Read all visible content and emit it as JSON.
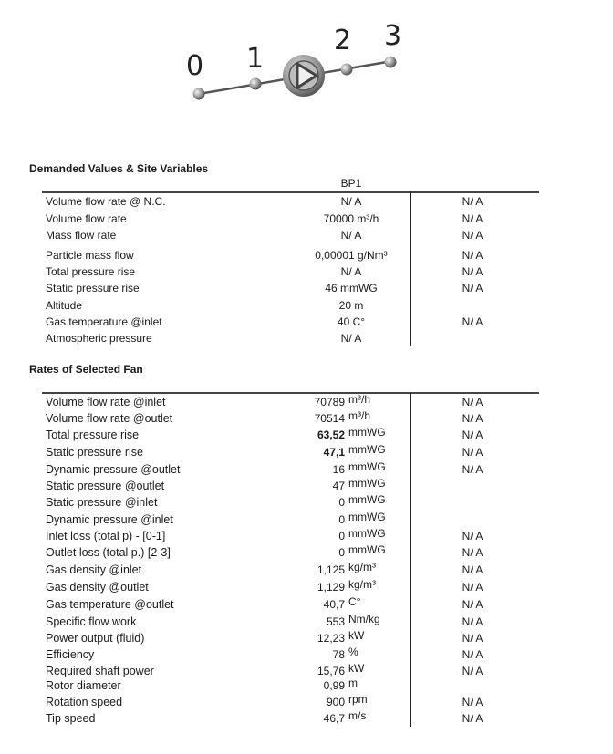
{
  "diagram": {
    "points": [
      "0",
      "1",
      "2",
      "3"
    ],
    "icon": "fan-pump-icon"
  },
  "demanded": {
    "title": "Demanded Values & Site Variables",
    "column_header": "BP1",
    "rows": [
      {
        "label": "Volume flow rate @ N.C.",
        "value": "N/ A",
        "alt": "N/ A"
      },
      {
        "label": "Volume flow rate",
        "value": "70000 m³/h",
        "alt": "N/ A"
      },
      {
        "label": "Mass flow rate",
        "value": "N/ A",
        "alt": "N/ A"
      },
      {
        "label": "Particle mass flow",
        "value": "0,00001 g/Nm³",
        "alt": "N/ A"
      },
      {
        "label": "Total pressure rise",
        "value": "N/ A",
        "alt": "N/ A"
      },
      {
        "label": "Static pressure rise",
        "value": "46 mmWG",
        "alt": "N/ A"
      },
      {
        "label": "Altitude",
        "value": "20 m",
        "alt": ""
      },
      {
        "label": "Gas temperature @inlet",
        "value": "40 C°",
        "alt": "N/ A"
      },
      {
        "label": "Atmospheric pressure",
        "value": "N/ A",
        "alt": ""
      }
    ]
  },
  "fan": {
    "title": "Rates of Selected Fan",
    "rows": [
      {
        "label": "Volume flow rate @inlet",
        "num": "70789",
        "unit": "m³/h",
        "alt": "N/ A",
        "bold": false
      },
      {
        "label": "Volume flow rate @outlet",
        "num": "70514",
        "unit": "m³/h",
        "alt": "N/ A",
        "bold": false
      },
      {
        "label": "Total pressure rise",
        "num": "63,52",
        "unit": "mmWG",
        "alt": "N/ A",
        "bold": true
      },
      {
        "label": "Static pressure rise",
        "num": "47,1",
        "unit": "mmWG",
        "alt": "N/ A",
        "bold": true
      },
      {
        "label": "Dynamic pressure @outlet",
        "num": "16",
        "unit": "mmWG",
        "alt": "N/ A",
        "bold": false
      },
      {
        "label": "Static pressure @outlet",
        "num": "47",
        "unit": "mmWG",
        "alt": "",
        "bold": false
      },
      {
        "label": "Static pressure @inlet",
        "num": "0",
        "unit": "mmWG",
        "alt": "",
        "bold": false
      },
      {
        "label": "Dynamic pressure @inlet",
        "num": "0",
        "unit": "mmWG",
        "alt": "",
        "bold": false
      },
      {
        "label": "Inlet loss (total p) - [0-1]",
        "num": "0",
        "unit": "mmWG",
        "alt": "N/ A",
        "bold": false
      },
      {
        "label": "Outlet loss (total p.) [2-3]",
        "num": "0",
        "unit": "mmWG",
        "alt": "N/ A",
        "bold": false
      },
      {
        "label": "Gas density @inlet",
        "num": "1,125",
        "unit": "kg/m³",
        "alt": "N/ A",
        "bold": false
      },
      {
        "label": "Gas density @outlet",
        "num": "1,129",
        "unit": "kg/m³",
        "alt": "N/ A",
        "bold": false
      },
      {
        "label": "Gas temperature @outlet",
        "num": "40,7",
        "unit": "C°",
        "alt": "N/ A",
        "bold": false
      },
      {
        "label": "Specific flow work",
        "num": "553",
        "unit": "Nm/kg",
        "alt": "N/ A",
        "bold": false
      },
      {
        "label": "Power output (fluid)",
        "num": "12,23",
        "unit": "kW",
        "alt": "N/ A",
        "bold": false
      },
      {
        "label": "Efficiency",
        "num": "78",
        "unit": "%",
        "alt": "N/ A",
        "bold": false
      },
      {
        "label": "Required shaft power",
        "num": "15,76",
        "unit": "kW",
        "alt": "N/ A",
        "bold": false
      },
      {
        "label": "Rotor diameter",
        "num": "0,99",
        "unit": "m",
        "alt": "",
        "bold": false
      },
      {
        "label": "Rotation speed",
        "num": "900",
        "unit": "rpm",
        "alt": "N/ A",
        "bold": false
      },
      {
        "label": "Tip speed",
        "num": "46,7",
        "unit": "m/s",
        "alt": "N/ A",
        "bold": false
      }
    ]
  }
}
